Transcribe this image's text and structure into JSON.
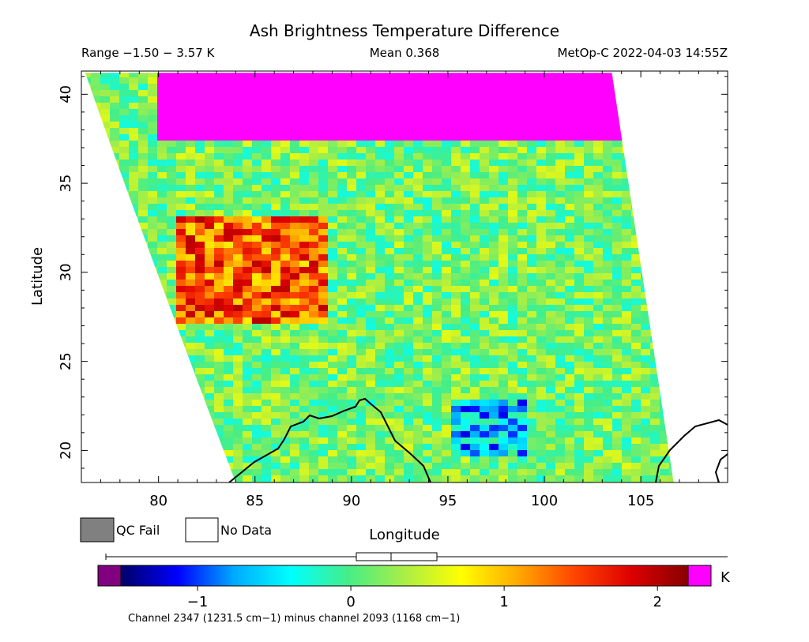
{
  "chart_data": {
    "type": "heatmap",
    "title": "Ash Brightness Temperature Difference",
    "header": {
      "range": "Range −1.50 − 3.57 K",
      "mean": "Mean 0.368",
      "satellite": "MetOp-C 2022-04-03 14:55Z"
    },
    "xlabel": "Longitude",
    "ylabel": "Latitude",
    "xlim": [
      76,
      109.5
    ],
    "ylim": [
      18.2,
      41.3
    ],
    "xticks": [
      80,
      85,
      90,
      95,
      100,
      105
    ],
    "yticks": [
      20,
      25,
      30,
      35,
      40
    ],
    "swath": {
      "west_edge": [
        [
          76.2,
          41.2
        ],
        [
          84,
          18.2
        ]
      ],
      "east_edge": [
        [
          103.5,
          41.2
        ],
        [
          106.7,
          18.2
        ]
      ]
    },
    "colorbar": {
      "unit": "K",
      "ticks": [
        -1,
        0,
        1,
        2
      ],
      "range": [
        -1.5,
        2.2
      ],
      "colors": [
        "#000066",
        "#0000ff",
        "#00aaff",
        "#00ffff",
        "#44ee88",
        "#aaee44",
        "#ffff00",
        "#ffaa00",
        "#ff4400",
        "#dd0000",
        "#880000"
      ],
      "under_color": "#800080",
      "over_color": "#ff00ff"
    },
    "regions": [
      {
        "name": "high BTD band north",
        "lon": [
          80,
          104
        ],
        "lat": [
          37.5,
          41.2
        ],
        "value": 3.0
      },
      {
        "name": "elevated west edge",
        "lon": [
          81,
          89
        ],
        "lat": [
          27,
          33
        ],
        "value": 1.4
      },
      {
        "name": "low BTD south-east",
        "lon": [
          95,
          99
        ],
        "lat": [
          19.5,
          23
        ],
        "value": -0.6
      }
    ],
    "legend": [
      {
        "label": "QC Fail",
        "color": "#808080"
      },
      {
        "label": "No Data",
        "color": "#ffffff"
      }
    ],
    "caption": "Channel 2347 (1231.5 cm−1) minus channel 2093 (1168 cm−1)"
  }
}
